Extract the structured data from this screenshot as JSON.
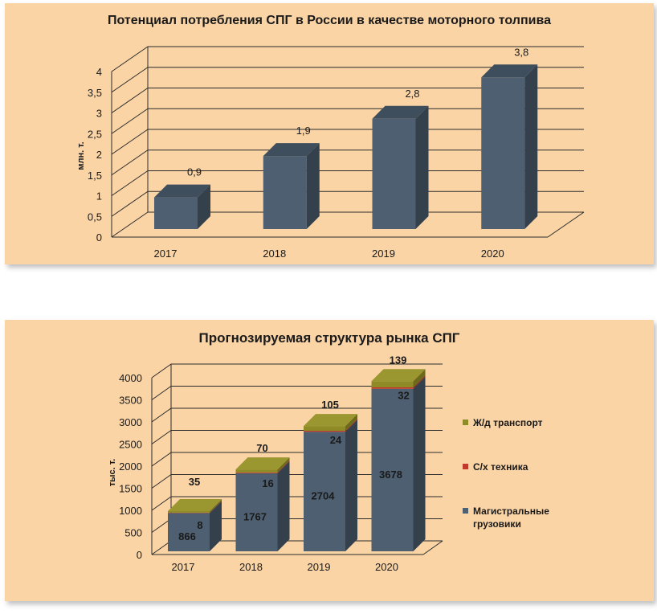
{
  "colors": {
    "background": "#fbd4a6",
    "bar_front": "#4d5f70",
    "bar_side": "#34404c",
    "bar_top": "#3f4e5d",
    "rail": "#8e8a26",
    "agri": "#c0392b",
    "trucks": "#4d5f70"
  },
  "chart_data": [
    {
      "type": "bar",
      "title": "Потенциал потребления СПГ в России в качестве моторного толпива",
      "xlabel": "",
      "ylabel": "млн. т.",
      "categories": [
        "2017",
        "2018",
        "2019",
        "2020"
      ],
      "values": [
        0.9,
        1.9,
        2.8,
        3.8
      ],
      "data_labels": [
        "0,9",
        "1,9",
        "2,8",
        "3,8"
      ],
      "ylim": [
        0,
        4
      ],
      "y_ticks": [
        "0",
        "0,5",
        "1",
        "1,5",
        "2",
        "2,5",
        "3",
        "3,5",
        "4"
      ],
      "grid": true,
      "style": "3d"
    },
    {
      "type": "bar",
      "stacked": true,
      "title": "Прогнозируемая структура рынка СПГ",
      "xlabel": "",
      "ylabel": "тыс. т.",
      "categories": [
        "2017",
        "2018",
        "2019",
        "2020"
      ],
      "series": [
        {
          "name": "Магистральные грузовики",
          "values": [
            866,
            1767,
            2704,
            3678
          ]
        },
        {
          "name": "С/х техника",
          "values": [
            8,
            16,
            24,
            32
          ]
        },
        {
          "name": "Ж/д транспорт",
          "values": [
            35,
            70,
            105,
            139
          ]
        }
      ],
      "ylim": [
        0,
        4000
      ],
      "y_ticks": [
        "0",
        "500",
        "1000",
        "1500",
        "2000",
        "2500",
        "3000",
        "3500",
        "4000"
      ],
      "legend": [
        "Ж/д транспорт",
        "С/х техника",
        "Магистральные грузовики"
      ],
      "legend_lines": [
        [
          "Ж/д транспорт"
        ],
        [
          "С/х техника"
        ],
        [
          "Магистральные",
          "грузовики"
        ]
      ],
      "legend_position": "right",
      "grid": true,
      "style": "3d"
    }
  ]
}
